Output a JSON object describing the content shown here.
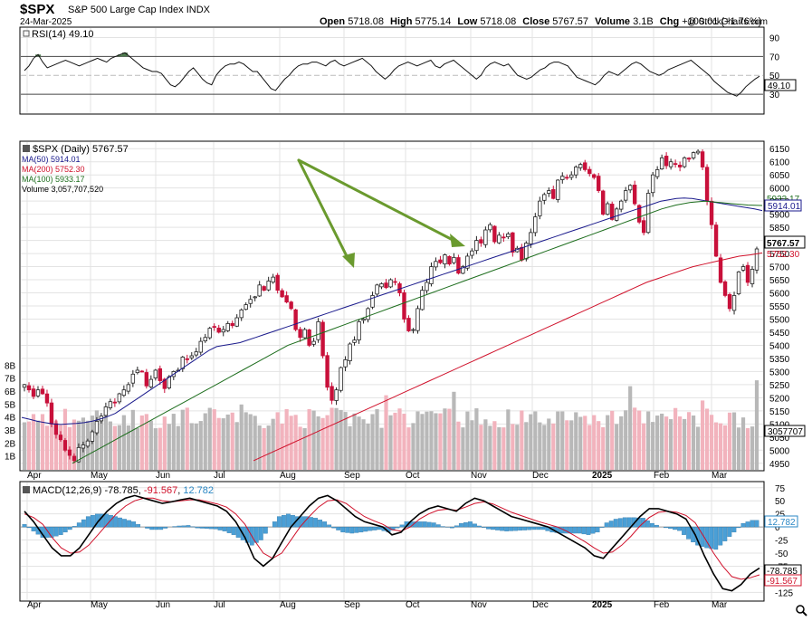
{
  "header": {
    "symbol": "$SPX",
    "name": "S&P 500 Large Cap Index",
    "exchange": "INDX",
    "date": "24-Mar-2025",
    "copyright": "@ StockCharts.com",
    "stats": [
      {
        "label": "Open",
        "value": "5718.08"
      },
      {
        "label": "High",
        "value": "5775.14"
      },
      {
        "label": "Low",
        "value": "5718.08"
      },
      {
        "label": "Close",
        "value": "5767.57"
      },
      {
        "label": "Volume",
        "value": "3.1B"
      },
      {
        "label": "Chg",
        "value": "+100.01 (+1.76%)"
      }
    ]
  },
  "colors": {
    "up": "#222222",
    "down": "#c8103a",
    "ma50": "#1a1a8c",
    "ma200": "#d0102a",
    "ma100": "#1e6e1e",
    "volume_up": "#b8b8b8",
    "volume_down": "#f2b3bd",
    "macd_hist": "#4a9fd6",
    "rsi_fill": "#4d7a4d",
    "arrow": "#6a9a2e",
    "grid": "#e3e3e3"
  },
  "chart_data": [
    {
      "type": "line",
      "panel": "rsi",
      "label": "RSI(14) 49.10",
      "current_value_tag": "49.10",
      "y_ticks": [
        "90",
        "70",
        "50",
        "30"
      ],
      "ylim": [
        10,
        100
      ],
      "overbought": 70,
      "oversold": 30,
      "values": [
        55,
        60,
        68,
        72,
        64,
        58,
        60,
        62,
        64,
        66,
        64,
        62,
        60,
        62,
        64,
        66,
        68,
        66,
        64,
        68,
        70,
        72,
        74,
        70,
        66,
        62,
        58,
        56,
        54,
        54,
        52,
        46,
        40,
        38,
        42,
        48,
        54,
        58,
        52,
        46,
        42,
        40,
        50,
        56,
        60,
        62,
        62,
        64,
        62,
        58,
        54,
        54,
        48,
        42,
        36,
        34,
        40,
        46,
        50,
        56,
        60,
        62,
        62,
        64,
        64,
        62,
        60,
        64,
        66,
        62,
        60,
        62,
        64,
        66,
        68,
        64,
        60,
        54,
        50,
        46,
        50,
        56,
        60,
        62,
        64,
        62,
        60,
        62,
        64,
        66,
        60,
        58,
        62,
        64,
        66,
        62,
        58,
        54,
        50,
        46,
        50,
        58,
        62,
        64,
        62,
        60,
        62,
        56,
        50,
        48,
        46,
        48,
        52,
        56,
        58,
        62,
        64,
        64,
        62,
        60,
        54,
        48,
        46,
        44,
        42,
        40,
        44,
        50,
        54,
        52,
        50,
        54,
        58,
        62,
        64,
        62,
        58,
        54,
        52,
        50,
        52,
        56,
        58,
        60,
        62,
        64,
        66,
        62,
        58,
        54,
        50,
        44,
        40,
        36,
        32,
        30,
        28,
        32,
        38,
        42,
        46,
        49.1
      ]
    },
    {
      "type": "candlestick",
      "panel": "price",
      "label": "$SPX (Daily) 5767.57",
      "current_value_tag": "5767.57",
      "x_labels": [
        "Apr",
        "May",
        "Jun",
        "Jul",
        "Aug",
        "Sep",
        "Oct",
        "Nov",
        "Dec",
        "2025",
        "Feb",
        "Mar"
      ],
      "y_ticks": [
        "6150",
        "6100",
        "6050",
        "6000",
        "5950",
        "5900",
        "5850",
        "5800",
        "5750",
        "5700",
        "5650",
        "5600",
        "5550",
        "5500",
        "5450",
        "5400",
        "5350",
        "5300",
        "5250",
        "5200",
        "5150",
        "5100",
        "5050",
        "5000",
        "4950"
      ],
      "ylim": [
        4925,
        6175
      ],
      "closes": [
        5250,
        5230,
        5205,
        5230,
        5215,
        5180,
        5100,
        5060,
        5040,
        5000,
        4980,
        4960,
        5010,
        5020,
        5035,
        5070,
        5110,
        5130,
        5165,
        5185,
        5180,
        5215,
        5230,
        5250,
        5290,
        5305,
        5300,
        5245,
        5270,
        5305,
        5265,
        5235,
        5280,
        5300,
        5305,
        5355,
        5346,
        5360,
        5375,
        5415,
        5430,
        5465,
        5470,
        5450,
        5460,
        5483,
        5475,
        5505,
        5535,
        5555,
        5575,
        5585,
        5630,
        5610,
        5645,
        5660,
        5610,
        5585,
        5565,
        5540,
        5460,
        5430,
        5460,
        5400,
        5415,
        5490,
        5360,
        5240,
        5190,
        5230,
        5315,
        5345,
        5405,
        5420,
        5490,
        5500,
        5540,
        5590,
        5630,
        5635,
        5620,
        5650,
        5640,
        5600,
        5500,
        5455,
        5460,
        5540,
        5610,
        5640,
        5700,
        5720,
        5715,
        5745,
        5710,
        5735,
        5675,
        5700,
        5740,
        5760,
        5800,
        5790,
        5840,
        5860,
        5795,
        5820,
        5810,
        5825,
        5755,
        5770,
        5725,
        5790,
        5830,
        5890,
        5950,
        5975,
        5990,
        5960,
        6030,
        6045,
        6040,
        6050,
        6080,
        6090,
        6070,
        6055,
        6040,
        5990,
        5900,
        5940,
        5880,
        5920,
        5950,
        5990,
        6010,
        5940,
        5870,
        5830,
        5980,
        6050,
        6070,
        6115,
        6085,
        6100,
        6090,
        6080,
        6115,
        6110,
        6135,
        6140,
        6080,
        5950,
        5860,
        5740,
        5640,
        5590,
        5540,
        5590,
        5680,
        5700,
        5640,
        5690,
        5767.57
      ],
      "series": [
        {
          "name": "MA(50) 5914.01",
          "label_tag": "5914.01",
          "values": [
            5125,
            5118,
            5110,
            5105,
            5100,
            5098,
            5100,
            5102,
            5105,
            5110,
            5118,
            5128,
            5140,
            5160,
            5180,
            5200,
            5220,
            5240,
            5260,
            5280,
            5300,
            5320,
            5340,
            5360,
            5380,
            5395,
            5400,
            5405,
            5410,
            5420,
            5430,
            5440,
            5450,
            5460,
            5470,
            5480,
            5490,
            5500,
            5510,
            5520,
            5530,
            5540,
            5550,
            5560,
            5570,
            5580,
            5590,
            5600,
            5610,
            5620,
            5630,
            5640,
            5650,
            5660,
            5670,
            5680,
            5690,
            5700,
            5710,
            5720,
            5730,
            5740,
            5750,
            5760,
            5770,
            5780,
            5790,
            5800,
            5810,
            5820,
            5830,
            5840,
            5850,
            5860,
            5870,
            5880,
            5890,
            5900,
            5910,
            5920,
            5930,
            5940,
            5950,
            5955,
            5960,
            5962,
            5960,
            5955,
            5950,
            5945,
            5940,
            5935,
            5930,
            5925,
            5920,
            5914.01
          ]
        },
        {
          "name": "MA(200) 5752.30",
          "label_tag": "5752.30",
          "values": [
            4960,
            4980,
            5000,
            5020,
            5040,
            5060,
            5080,
            5100,
            5120,
            5140,
            5160,
            5180,
            5200,
            5220,
            5240,
            5260,
            5280,
            5300,
            5320,
            5340,
            5360,
            5380,
            5400,
            5420,
            5440,
            5460,
            5480,
            5500,
            5520,
            5540,
            5560,
            5580,
            5600,
            5620,
            5640,
            5655,
            5670,
            5685,
            5700,
            5710,
            5720,
            5730,
            5740,
            5745,
            5752.3
          ]
        },
        {
          "name": "MA(100) 5933.17",
          "label_tag": "5933.17",
          "values": [
            4950,
            4980,
            5010,
            5040,
            5070,
            5100,
            5130,
            5160,
            5190,
            5220,
            5250,
            5280,
            5310,
            5340,
            5370,
            5400,
            5420,
            5440,
            5460,
            5480,
            5500,
            5520,
            5540,
            5560,
            5580,
            5600,
            5620,
            5640,
            5660,
            5680,
            5700,
            5720,
            5740,
            5760,
            5780,
            5800,
            5820,
            5840,
            5860,
            5880,
            5900,
            5920,
            5935,
            5945,
            5950,
            5945,
            5940,
            5935,
            5933.17
          ]
        }
      ],
      "volume": {
        "label": "Volume 3,057,707,520",
        "label_tag": "3057707",
        "y_ticks": [
          "8B",
          "7B",
          "6B",
          "5B",
          "4B",
          "3B",
          "2B",
          "1B"
        ],
        "ylim": [
          0,
          9
        ]
      }
    },
    {
      "type": "line",
      "panel": "macd",
      "label": "MACD(12,26,9) -78.785, -91.567, 12.782",
      "label_parts": [
        "MACD(12,26,9)",
        "-78.785",
        "-91.567",
        "12.782"
      ],
      "y_ticks": [
        "75",
        "50",
        "25",
        "0",
        "-25",
        "-50",
        "-75",
        "-100",
        "-125"
      ],
      "ylim": [
        -140,
        85
      ],
      "value_tags": [
        "12.782",
        "-78.785",
        "-91.567"
      ],
      "series": [
        {
          "name": "MACD",
          "values": [
            30,
            10,
            -15,
            -40,
            -55,
            -55,
            -40,
            -15,
            10,
            30,
            45,
            55,
            60,
            55,
            50,
            45,
            48,
            52,
            55,
            50,
            45,
            40,
            30,
            10,
            -20,
            -60,
            -75,
            -60,
            -30,
            0,
            20,
            40,
            55,
            60,
            50,
            35,
            20,
            10,
            5,
            0,
            -15,
            -10,
            10,
            25,
            35,
            40,
            35,
            30,
            45,
            55,
            50,
            40,
            30,
            20,
            15,
            10,
            5,
            0,
            -10,
            -20,
            -30,
            -40,
            -55,
            -60,
            -40,
            -20,
            0,
            20,
            35,
            35,
            30,
            25,
            15,
            -15,
            -55,
            -90,
            -118,
            -122,
            -110,
            -90,
            -78.785
          ]
        },
        {
          "name": "Signal",
          "values": [
            25,
            18,
            5,
            -20,
            -40,
            -50,
            -48,
            -35,
            -15,
            5,
            25,
            40,
            50,
            55,
            55,
            50,
            48,
            50,
            52,
            52,
            48,
            44,
            38,
            25,
            5,
            -25,
            -50,
            -60,
            -50,
            -25,
            0,
            20,
            38,
            50,
            52,
            45,
            32,
            20,
            12,
            5,
            -5,
            -8,
            0,
            15,
            25,
            32,
            34,
            32,
            38,
            45,
            48,
            44,
            36,
            28,
            22,
            16,
            10,
            5,
            0,
            -8,
            -18,
            -28,
            -40,
            -50,
            -48,
            -35,
            -18,
            2,
            18,
            28,
            30,
            28,
            22,
            8,
            -20,
            -50,
            -75,
            -95,
            -100,
            -97,
            -91.567
          ]
        },
        {
          "name": "Histogram",
          "values": [
            5,
            -8,
            -20,
            -20,
            -15,
            -5,
            8,
            20,
            25,
            25,
            20,
            15,
            10,
            0,
            -5,
            -5,
            0,
            2,
            3,
            -2,
            -3,
            -4,
            -8,
            -15,
            -25,
            -35,
            -25,
            0,
            20,
            25,
            20,
            20,
            17,
            10,
            -2,
            -10,
            -12,
            -10,
            -7,
            -5,
            -10,
            -2,
            10,
            10,
            10,
            8,
            1,
            -2,
            7,
            10,
            2,
            -4,
            -6,
            -8,
            -7,
            -6,
            -5,
            -5,
            -10,
            -12,
            -12,
            -12,
            -15,
            -10,
            8,
            15,
            18,
            18,
            17,
            7,
            0,
            -3,
            -7,
            -23,
            -35,
            -40,
            -43,
            -27,
            -10,
            7,
            12.782
          ]
        }
      ]
    }
  ]
}
